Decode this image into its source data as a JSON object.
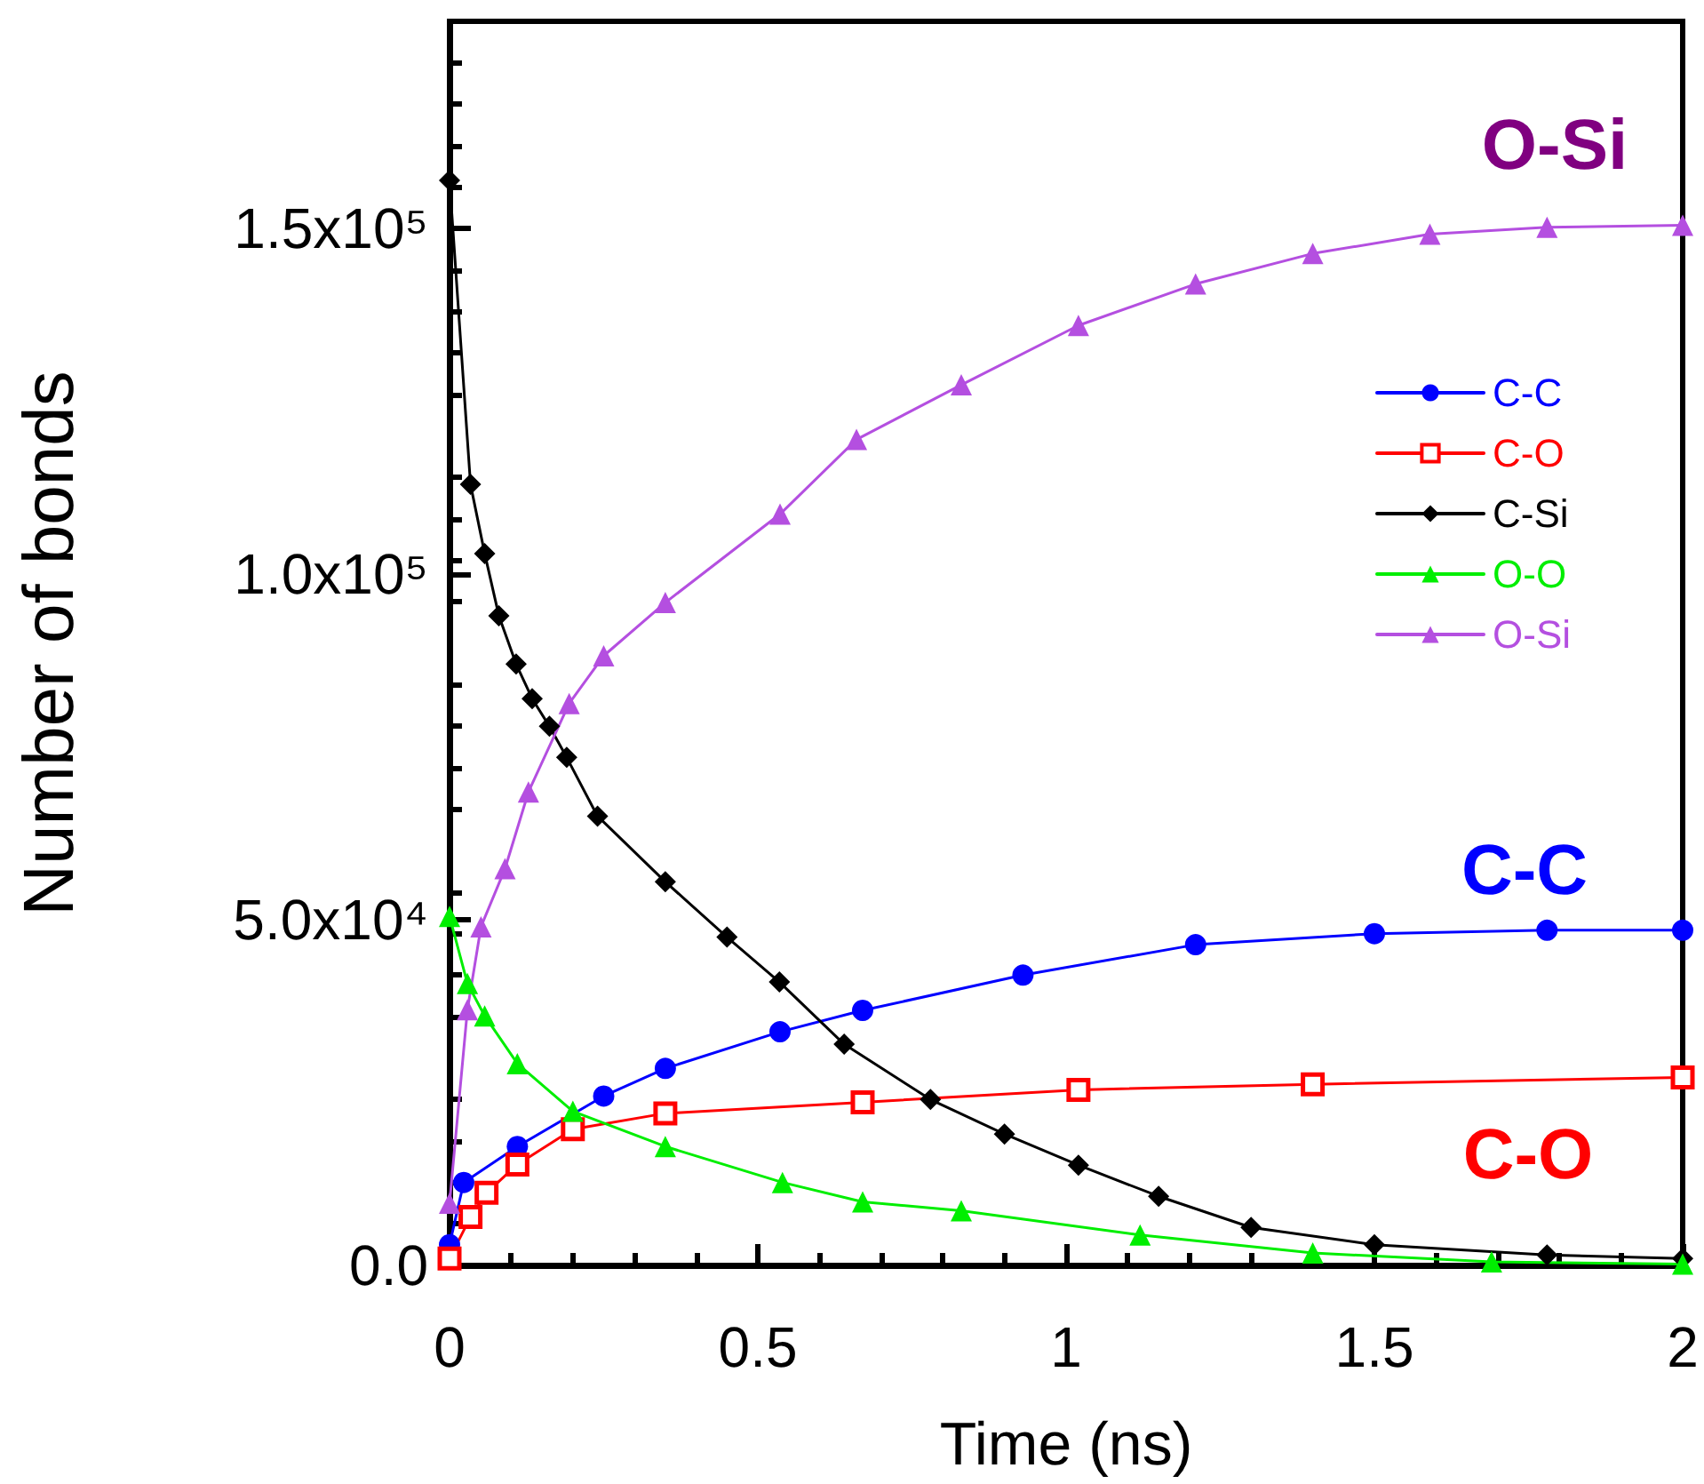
{
  "chart_data": {
    "type": "line",
    "xlabel": "Time (ns)",
    "ylabel": "Number of bonds",
    "xlim": [
      0,
      2
    ],
    "xticks": [
      0,
      0.5,
      1,
      1.5,
      2
    ],
    "ylim": [
      0,
      180000
    ],
    "yticks": [
      {
        "value": 0,
        "label": "0.0"
      },
      {
        "value": 50000,
        "label": "5.0x10⁴"
      },
      {
        "value": 100000,
        "label": "1.0x10⁵"
      },
      {
        "value": 150000,
        "label": "1.5x10⁵"
      }
    ],
    "grid": false,
    "legend": "top right",
    "line_style": "solid",
    "series": [
      {
        "name": "C-C",
        "color": "#0000ff",
        "marker": "circle",
        "x": [
          0,
          0.023,
          0.11,
          0.25,
          0.35,
          0.536,
          0.67,
          0.93,
          1.21,
          1.5,
          1.78,
          2.0
        ],
        "values": [
          3000,
          12000,
          17200,
          24500,
          28500,
          33800,
          36900,
          42000,
          46400,
          48000,
          48500,
          48500
        ]
      },
      {
        "name": "C-O",
        "color": "#ff0000",
        "marker": "square",
        "x": [
          0,
          0.034,
          0.06,
          0.11,
          0.2,
          0.35,
          0.67,
          1.02,
          1.4,
          2.0
        ],
        "values": [
          1000,
          7000,
          10500,
          14600,
          19700,
          22000,
          23600,
          25400,
          26200,
          27200
        ]
      },
      {
        "name": "C-Si",
        "color": "#000000",
        "marker": "diamond",
        "x": [
          0,
          0.034,
          0.057,
          0.08,
          0.108,
          0.134,
          0.162,
          0.19,
          0.24,
          0.35,
          0.45,
          0.535,
          0.64,
          0.78,
          0.9,
          1.02,
          1.15,
          1.3,
          1.5,
          1.78,
          2.0
        ],
        "values": [
          157000,
          113000,
          103000,
          94000,
          87000,
          82000,
          78000,
          73500,
          65000,
          55500,
          47500,
          41000,
          32000,
          24000,
          19000,
          14500,
          10000,
          5500,
          3000,
          1500,
          1000
        ]
      },
      {
        "name": "O-O",
        "color": "#00ee00",
        "marker": "triangle",
        "x": [
          0,
          0.029,
          0.057,
          0.11,
          0.2,
          0.35,
          0.54,
          0.67,
          0.83,
          1.12,
          1.4,
          1.69,
          2.0
        ],
        "values": [
          50500,
          40800,
          36100,
          29200,
          22300,
          17200,
          12000,
          9200,
          7900,
          4400,
          1800,
          500,
          200
        ]
      },
      {
        "name": "O-Si",
        "color": "#b44fe0",
        "marker": "triangle",
        "x": [
          0,
          0.029,
          0.051,
          0.09,
          0.128,
          0.194,
          0.25,
          0.35,
          0.536,
          0.66,
          0.83,
          1.02,
          1.21,
          1.4,
          1.59,
          1.78,
          2.0
        ],
        "values": [
          9000,
          37000,
          49000,
          57400,
          68500,
          81300,
          88200,
          95900,
          108700,
          119500,
          127400,
          136000,
          142000,
          146400,
          149200,
          150200,
          150500
        ]
      }
    ],
    "annotations": [
      "O-Si",
      "C-C",
      "C-O"
    ]
  }
}
